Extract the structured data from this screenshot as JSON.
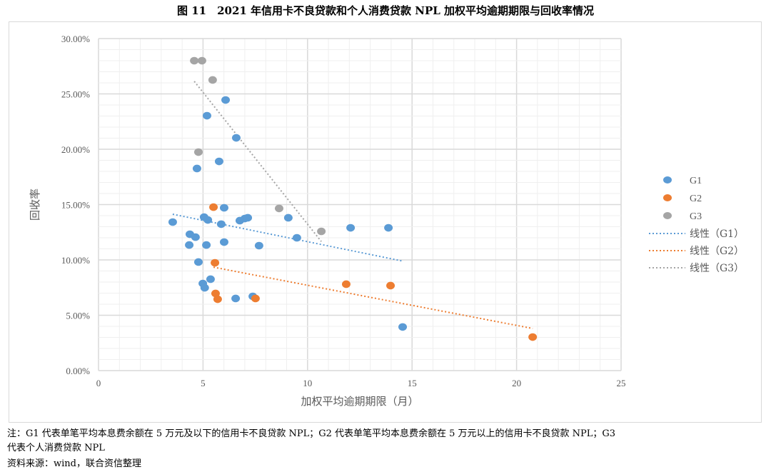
{
  "title": "图 11　2021 年信用卡不良贷款和个人消费贷款 NPL 加权平均逾期期限与回收率情况",
  "notes": [
    "注：G1 代表单笔平均本息费余额在 5 万元及以下的信用卡不良贷款 NPL；G2 代表单笔平均本息费余额在 5 万元以上的信用卡不良贷款 NPL；G3",
    "代表个人消费贷款 NPL",
    "资料来源：wind，联合资信整理"
  ],
  "chart_data": {
    "type": "scatter",
    "xlabel": "加权平均逾期期限（月）",
    "ylabel": "回收率",
    "xlim": [
      0,
      25
    ],
    "ylim": [
      0,
      30
    ],
    "x_ticks": [
      "0",
      "5",
      "10",
      "15",
      "20",
      "25"
    ],
    "y_ticks": [
      "0.00%",
      "5.00%",
      "10.00%",
      "15.00%",
      "20.00%",
      "25.00%",
      "30.00%"
    ],
    "grid": true,
    "legend_position": "right",
    "series": [
      {
        "name": "G1",
        "color": "#5b9bd5",
        "trend_label": "线性（G1）",
        "points": [
          [
            3.55,
            13.42
          ],
          [
            6.08,
            24.45
          ],
          [
            5.19,
            23.03
          ],
          [
            6.59,
            21.03
          ],
          [
            4.71,
            18.26
          ],
          [
            5.77,
            18.9
          ],
          [
            6.01,
            14.71
          ],
          [
            5.05,
            13.87
          ],
          [
            5.23,
            13.61
          ],
          [
            5.87,
            13.23
          ],
          [
            6.76,
            13.55
          ],
          [
            7.0,
            13.74
          ],
          [
            7.14,
            13.81
          ],
          [
            9.08,
            13.81
          ],
          [
            4.37,
            12.32
          ],
          [
            4.64,
            12.06
          ],
          [
            4.34,
            11.35
          ],
          [
            5.16,
            11.35
          ],
          [
            6.01,
            11.61
          ],
          [
            7.68,
            11.29
          ],
          [
            9.49,
            12.0
          ],
          [
            12.06,
            12.9
          ],
          [
            13.87,
            12.9
          ],
          [
            4.78,
            9.81
          ],
          [
            5.36,
            8.26
          ],
          [
            4.99,
            7.87
          ],
          [
            5.08,
            7.48
          ],
          [
            6.56,
            6.52
          ],
          [
            7.38,
            6.71
          ],
          [
            14.55,
            3.94
          ]
        ]
      },
      {
        "name": "G2",
        "color": "#ed7d31",
        "trend_label": "线性（G2）",
        "points": [
          [
            5.5,
            14.77
          ],
          [
            5.57,
            9.74
          ],
          [
            5.6,
            6.97
          ],
          [
            5.7,
            6.45
          ],
          [
            7.51,
            6.52
          ],
          [
            11.85,
            7.81
          ],
          [
            13.97,
            7.68
          ],
          [
            20.77,
            3.03
          ]
        ]
      },
      {
        "name": "G3",
        "color": "#a5a5a5",
        "trend_label": "线性（G3）",
        "points": [
          [
            4.58,
            28.0
          ],
          [
            4.95,
            28.0
          ],
          [
            5.46,
            26.26
          ],
          [
            4.78,
            19.74
          ],
          [
            8.64,
            14.65
          ],
          [
            10.66,
            12.58
          ]
        ]
      }
    ]
  }
}
